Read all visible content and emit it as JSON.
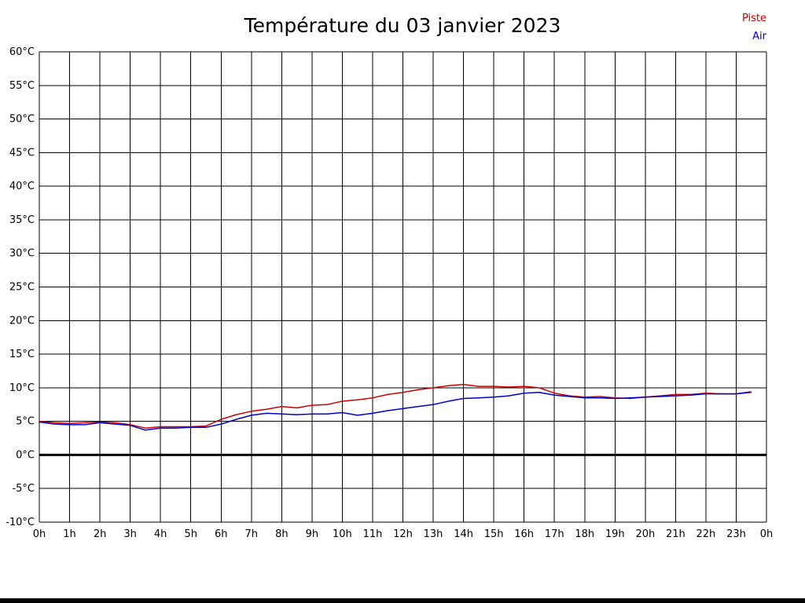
{
  "title": "Température du 03 janvier 2023",
  "legend": [
    {
      "label": "Piste",
      "color": "#cc0000"
    },
    {
      "label": "Air",
      "color": "#0000cc"
    }
  ],
  "chart_data": {
    "type": "line",
    "title": "Température du 03 janvier 2023",
    "xlabel": "",
    "ylabel": "",
    "x_unit": "hour of day",
    "xlim": [
      0,
      24
    ],
    "ylim": [
      -10,
      60
    ],
    "y_tick_step": 5,
    "grid": true,
    "zero_line": true,
    "legend_position": "top-right",
    "x_tick_labels": [
      "0h",
      "1h",
      "2h",
      "3h",
      "4h",
      "5h",
      "6h",
      "7h",
      "8h",
      "9h",
      "10h",
      "11h",
      "12h",
      "13h",
      "14h",
      "15h",
      "16h",
      "17h",
      "18h",
      "19h",
      "20h",
      "21h",
      "22h",
      "23h",
      "0h"
    ],
    "y_tick_labels": [
      "60°C",
      "55°C",
      "50°C",
      "45°C",
      "40°C",
      "35°C",
      "30°C",
      "25°C",
      "20°C",
      "15°C",
      "10°C",
      "5°C",
      "0°C",
      "-5°C",
      "-10°C"
    ],
    "x": [
      0,
      0.5,
      1,
      1.5,
      2,
      2.5,
      3,
      3.5,
      4,
      4.5,
      5,
      5.5,
      6,
      6.5,
      7,
      7.5,
      8,
      8.5,
      9,
      9.5,
      10,
      10.5,
      11,
      11.5,
      12,
      12.5,
      13,
      13.5,
      14,
      14.5,
      15,
      15.5,
      16,
      16.5,
      17,
      17.5,
      18,
      18.5,
      19,
      19.5,
      20,
      20.5,
      21,
      21.5,
      22,
      22.5,
      23,
      23.5
    ],
    "series": [
      {
        "name": "Piste",
        "color": "#cc0000",
        "values": [
          5.0,
          4.8,
          4.7,
          4.8,
          4.9,
          4.8,
          4.5,
          4.0,
          4.2,
          4.2,
          4.2,
          4.3,
          5.3,
          6.0,
          6.5,
          6.8,
          7.2,
          7.0,
          7.4,
          7.5,
          8.0,
          8.2,
          8.5,
          9.0,
          9.3,
          9.7,
          10.0,
          10.3,
          10.5,
          10.2,
          10.2,
          10.1,
          10.2,
          10.0,
          9.2,
          8.8,
          8.6,
          8.7,
          8.5,
          8.4,
          8.6,
          8.8,
          9.0,
          9.0,
          9.2,
          9.1,
          9.1,
          9.3
        ]
      },
      {
        "name": "Air",
        "color": "#0000cc",
        "values": [
          4.9,
          4.6,
          4.5,
          4.5,
          4.8,
          4.6,
          4.4,
          3.7,
          4.0,
          4.0,
          4.1,
          4.1,
          4.6,
          5.3,
          5.9,
          6.2,
          6.1,
          6.0,
          6.1,
          6.1,
          6.3,
          5.9,
          6.2,
          6.6,
          6.9,
          7.2,
          7.5,
          8.0,
          8.4,
          8.5,
          8.6,
          8.8,
          9.2,
          9.3,
          8.9,
          8.7,
          8.5,
          8.5,
          8.4,
          8.5,
          8.6,
          8.7,
          8.8,
          8.9,
          9.1,
          9.1,
          9.1,
          9.4
        ]
      }
    ]
  }
}
